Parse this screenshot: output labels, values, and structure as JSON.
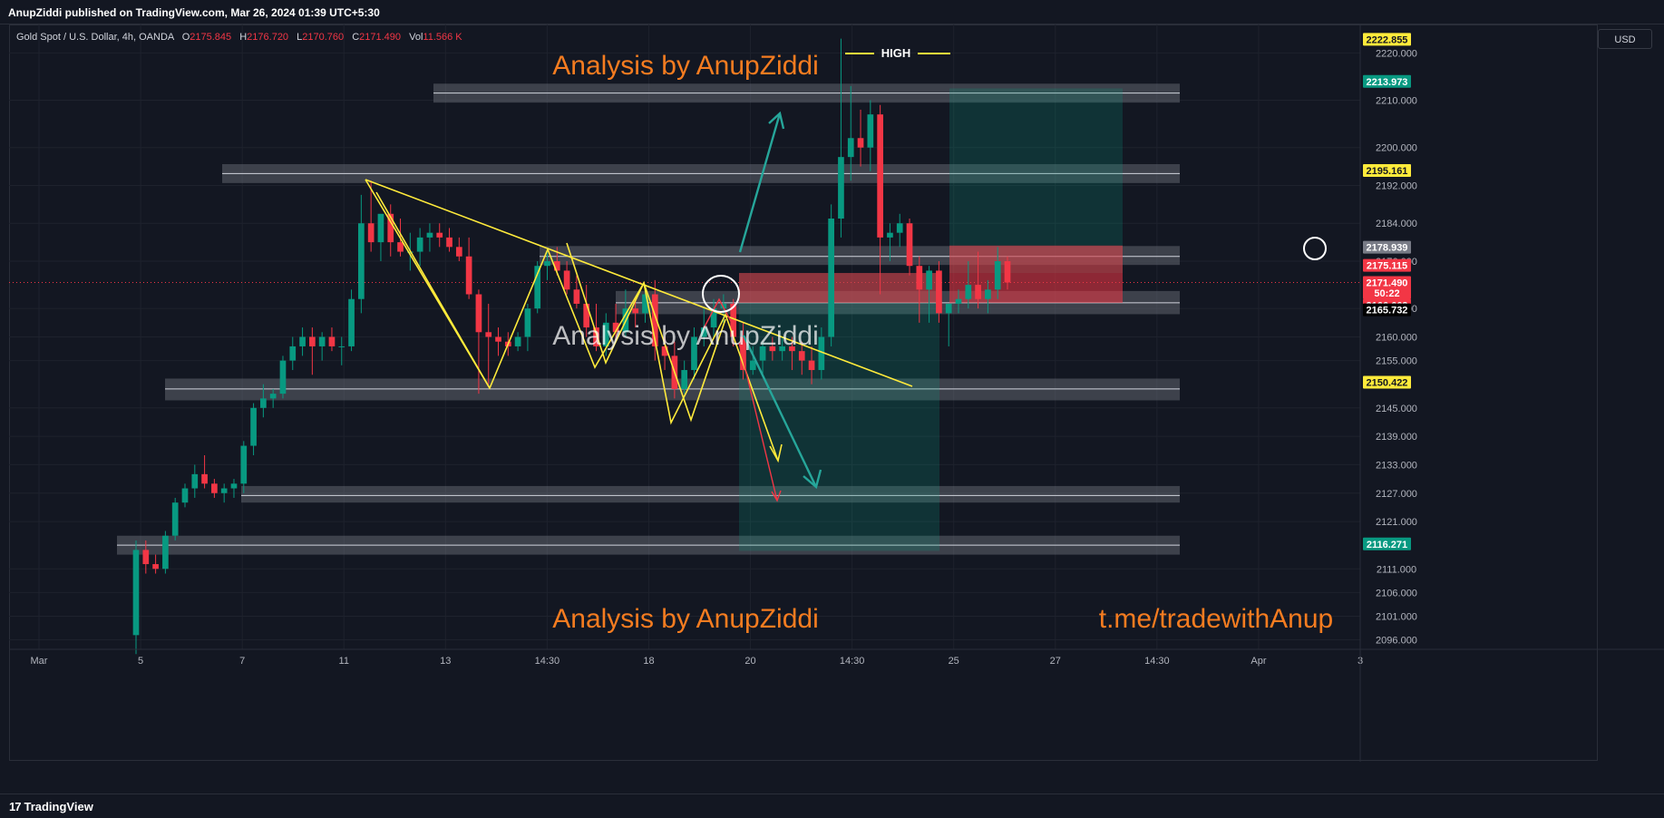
{
  "header": {
    "publisher_line": "AnupZiddi published on TradingView.com, Mar 26, 2024 01:39 UTC+5:30"
  },
  "legend": {
    "symbol": "Gold Spot / U.S. Dollar, 4h, OANDA",
    "o_label": "O",
    "o_value": "2175.845",
    "h_label": "H",
    "h_value": "2176.720",
    "l_label": "L",
    "l_value": "2170.760",
    "c_label": "C",
    "c_value": "2171.490",
    "vol_label": "Vol",
    "vol_value": "11.566 K"
  },
  "currency_button": "USD",
  "footer": {
    "brand": "TradingView"
  },
  "colors": {
    "background": "#131722",
    "bull": "#089981",
    "bear": "#f23645",
    "trendline": "#ffeb3b",
    "zone": "#787b86",
    "watermark": "#f57c20"
  },
  "chart_data": {
    "type": "candlestick",
    "symbol": "XAUUSD",
    "timeframe": "4h",
    "ylim": [
      2094,
      2226
    ],
    "yticks": [
      "2220.000",
      "2210.000",
      "2200.000",
      "2192.000",
      "2184.000",
      "2176.000",
      "2166.000",
      "2160.000",
      "2155.000",
      "2145.000",
      "2139.000",
      "2133.000",
      "2127.000",
      "2121.000",
      "2111.000",
      "2106.000",
      "2101.000",
      "2096.000"
    ],
    "xticks": [
      "Mar",
      "5",
      "7",
      "11",
      "13",
      "14:30",
      "18",
      "20",
      "14:30",
      "25",
      "27",
      "14:30",
      "Apr",
      "3"
    ],
    "price_badges": [
      {
        "label": "2222.855",
        "color": "#ffeb3b",
        "text_color": "#131722",
        "value": 2222.855
      },
      {
        "label": "2213.973",
        "color": "#089981",
        "text_color": "#ffffff",
        "value": 2213.973
      },
      {
        "label": "2195.161",
        "color": "#ffeb3b",
        "text_color": "#131722",
        "value": 2195.161
      },
      {
        "label": "2178.939",
        "color": "#787b86",
        "text_color": "#ffffff",
        "value": 2178.939
      },
      {
        "label": "2175.115",
        "color": "#f23645",
        "text_color": "#ffffff",
        "value": 2175.115
      },
      {
        "label": "2171.490",
        "color": "#f23645",
        "text_color": "#ffffff",
        "value": 2171.49
      },
      {
        "label": "50:22",
        "color": "#f23645",
        "text_color": "#ffffff",
        "value": 2169.3
      },
      {
        "label": "2166.662",
        "color": "#f23645",
        "text_color": "#ffffff",
        "value": 2166.662
      },
      {
        "label": "2165.732",
        "color": "#000000",
        "text_color": "#ffffff",
        "value": 2165.732
      },
      {
        "label": "2150.422",
        "color": "#ffeb3b",
        "text_color": "#131722",
        "value": 2150.422
      },
      {
        "label": "2116.271",
        "color": "#089981",
        "text_color": "#ffffff",
        "value": 2116.271
      }
    ],
    "candles": [
      [
        2097,
        2117,
        2093,
        2115
      ],
      [
        2115,
        2117,
        2110,
        2112
      ],
      [
        2112,
        2114,
        2110,
        2111
      ],
      [
        2111,
        2119,
        2110,
        2118
      ],
      [
        2118,
        2126,
        2117,
        2125
      ],
      [
        2125,
        2129,
        2124,
        2128
      ],
      [
        2128,
        2133,
        2126,
        2131
      ],
      [
        2131,
        2135,
        2128,
        2129
      ],
      [
        2129,
        2130,
        2126,
        2127
      ],
      [
        2127,
        2129,
        2125,
        2128
      ],
      [
        2128,
        2130,
        2126,
        2129
      ],
      [
        2129,
        2138,
        2127,
        2137
      ],
      [
        2137,
        2146,
        2135,
        2145
      ],
      [
        2145,
        2150,
        2143,
        2147
      ],
      [
        2147,
        2149,
        2145,
        2148
      ],
      [
        2148,
        2156,
        2147,
        2155
      ],
      [
        2155,
        2160,
        2153,
        2158
      ],
      [
        2158,
        2162,
        2156,
        2160
      ],
      [
        2160,
        2162,
        2152,
        2158
      ],
      [
        2158,
        2161,
        2155,
        2160
      ],
      [
        2160,
        2162,
        2157,
        2158
      ],
      [
        2158,
        2160,
        2154,
        2158
      ],
      [
        2158,
        2170,
        2157,
        2168
      ],
      [
        2168,
        2190,
        2165,
        2184
      ],
      [
        2184,
        2193,
        2178,
        2180
      ],
      [
        2180,
        2186,
        2176,
        2186
      ],
      [
        2186,
        2188,
        2177,
        2180
      ],
      [
        2180,
        2185,
        2177,
        2178
      ],
      [
        2178,
        2182,
        2174,
        2178
      ],
      [
        2178,
        2183,
        2175,
        2181
      ],
      [
        2181,
        2184,
        2178,
        2182
      ],
      [
        2182,
        2184,
        2179,
        2181
      ],
      [
        2181,
        2183,
        2178,
        2179
      ],
      [
        2179,
        2181,
        2176,
        2177
      ],
      [
        2177,
        2181,
        2168,
        2169
      ],
      [
        2169,
        2170,
        2148,
        2161
      ],
      [
        2161,
        2167,
        2150,
        2160
      ],
      [
        2160,
        2162,
        2156,
        2159
      ],
      [
        2159,
        2161,
        2156,
        2158
      ],
      [
        2158,
        2161,
        2157,
        2160
      ],
      [
        2160,
        2167,
        2157,
        2166
      ],
      [
        2166,
        2176,
        2165,
        2175
      ],
      [
        2175,
        2178,
        2172,
        2176
      ],
      [
        2176,
        2179,
        2173,
        2174
      ],
      [
        2174,
        2176,
        2169,
        2170
      ],
      [
        2170,
        2173,
        2166,
        2167
      ],
      [
        2167,
        2171,
        2160,
        2162
      ],
      [
        2162,
        2167,
        2157,
        2158
      ],
      [
        2158,
        2165,
        2156,
        2163
      ],
      [
        2163,
        2167,
        2159,
        2161
      ],
      [
        2161,
        2170,
        2160,
        2166
      ],
      [
        2166,
        2168,
        2162,
        2165
      ],
      [
        2165,
        2170,
        2163,
        2169
      ],
      [
        2169,
        2172,
        2155,
        2158
      ],
      [
        2158,
        2160,
        2153,
        2156
      ],
      [
        2156,
        2159,
        2147,
        2149
      ],
      [
        2149,
        2155,
        2148,
        2153
      ],
      [
        2153,
        2162,
        2151,
        2160
      ],
      [
        2160,
        2166,
        2158,
        2162
      ],
      [
        2162,
        2168,
        2160,
        2166
      ],
      [
        2166,
        2169,
        2163,
        2167
      ],
      [
        2167,
        2168,
        2158,
        2160
      ],
      [
        2160,
        2163,
        2151,
        2153
      ],
      [
        2153,
        2158,
        2152,
        2155
      ],
      [
        2155,
        2159,
        2152,
        2158
      ],
      [
        2158,
        2160,
        2155,
        2157
      ],
      [
        2157,
        2160,
        2155,
        2158
      ],
      [
        2158,
        2160,
        2153,
        2157
      ],
      [
        2157,
        2159,
        2152,
        2155
      ],
      [
        2155,
        2158,
        2150,
        2153
      ],
      [
        2153,
        2162,
        2151,
        2160
      ],
      [
        2160,
        2188,
        2158,
        2185
      ],
      [
        2185,
        2223,
        2181,
        2198
      ],
      [
        2198,
        2213,
        2193,
        2202
      ],
      [
        2202,
        2208,
        2196,
        2200
      ],
      [
        2200,
        2210,
        2195,
        2207
      ],
      [
        2207,
        2209,
        2169,
        2181
      ],
      [
        2181,
        2184,
        2176,
        2182
      ],
      [
        2182,
        2186,
        2179,
        2184
      ],
      [
        2184,
        2185,
        2173,
        2175
      ],
      [
        2175,
        2177,
        2163,
        2170
      ],
      [
        2170,
        2175,
        2163,
        2174
      ],
      [
        2174,
        2176,
        2163,
        2165
      ],
      [
        2165,
        2167,
        2158,
        2167
      ],
      [
        2167,
        2170,
        2165,
        2168
      ],
      [
        2168,
        2176,
        2166,
        2171
      ],
      [
        2171,
        2178,
        2166,
        2168
      ],
      [
        2168,
        2172,
        2165,
        2170
      ],
      [
        2170,
        2179,
        2168,
        2176
      ],
      [
        2176,
        2177,
        2170,
        2171.49
      ]
    ],
    "zones": [
      {
        "from": 2209.5,
        "to": 2213.5,
        "x0": 478,
        "x1": 1301,
        "line": 2211.5
      },
      {
        "from": 2192.5,
        "to": 2196.5,
        "x0": 245,
        "x1": 1301,
        "line": 2194.5
      },
      {
        "from": 2175.2,
        "to": 2179.2,
        "x0": 595,
        "x1": 1301,
        "line": 2177.0
      },
      {
        "from": 2164.8,
        "to": 2169.7,
        "x0": 679,
        "x1": 1301,
        "line": 2167.2
      },
      {
        "from": 2146.6,
        "to": 2151.2,
        "x0": 182,
        "x1": 1301,
        "line": 2149.0
      },
      {
        "from": 2125.0,
        "to": 2128.5,
        "x0": 266,
        "x1": 1301,
        "line": 2126.5
      },
      {
        "from": 2114.0,
        "to": 2118.0,
        "x0": 129,
        "x1": 1301,
        "line": 2116.0
      }
    ],
    "position_tools": [
      {
        "x0": 815,
        "x1": 1036,
        "profit_from": 2114.8,
        "profit_to": 2173.5,
        "loss_from": 2167.2,
        "loss_to": 2173.5
      },
      {
        "x0": 1047,
        "x1": 1238,
        "profit_from": 2173.5,
        "profit_to": 2212.5,
        "loss_from": 2167.2,
        "loss_to": 2179.3
      }
    ],
    "annotations": {
      "watermarks": [
        "Analysis by AnupZiddi",
        "Analysis by AnupZiddi",
        "Analysis by AnupZiddi"
      ],
      "link_text": "t.me/tradewithAnup",
      "high_label": "HIGH"
    }
  }
}
